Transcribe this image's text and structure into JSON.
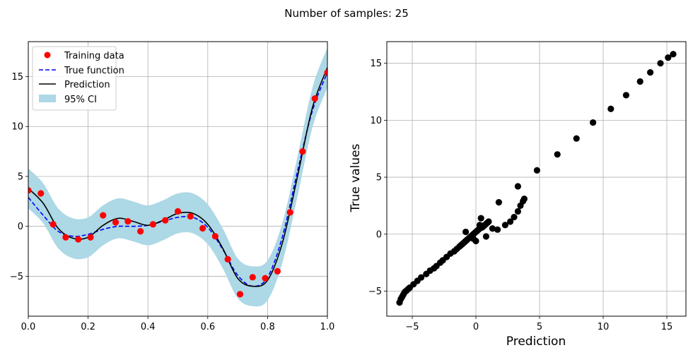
{
  "figure": {
    "suptitle": "Number of samples: 25"
  },
  "colors": {
    "training": "#ff0000",
    "true_function": "#0000ff",
    "prediction": "#000000",
    "ci": "#add8e6",
    "grid": "#b0b0b0",
    "scatter": "#000000"
  },
  "chart_data": [
    {
      "type": "line",
      "name": "gp-fit",
      "title": "",
      "xlabel": "",
      "ylabel": "",
      "xlim": [
        0,
        1
      ],
      "ylim": [
        -9,
        18.5
      ],
      "xticks": [
        0,
        0.2,
        0.4,
        0.6,
        0.8,
        1.0
      ],
      "xtick_labels": [
        "0.0",
        "0.2",
        "0.4",
        "0.6",
        "0.8",
        "1.0"
      ],
      "yticks": [
        -5,
        0,
        5,
        10,
        15
      ],
      "ytick_labels": [
        "−5",
        "0",
        "5",
        "10",
        "15"
      ],
      "grid": true,
      "legend": {
        "position": "upper-left",
        "entries": [
          "Training data",
          "True function",
          "Prediction",
          "95% CI"
        ]
      },
      "training_data": {
        "x": [
          0.0,
          0.042,
          0.083,
          0.125,
          0.167,
          0.208,
          0.25,
          0.292,
          0.333,
          0.375,
          0.417,
          0.458,
          0.5,
          0.542,
          0.583,
          0.625,
          0.667,
          0.708,
          0.75,
          0.792,
          0.833,
          0.875,
          0.917,
          0.958,
          1.0
        ],
        "y": [
          3.6,
          3.3,
          0.2,
          -1.1,
          -1.3,
          -1.1,
          1.1,
          0.4,
          0.5,
          -0.5,
          0.2,
          0.6,
          1.5,
          1.0,
          -0.2,
          -1.0,
          -3.3,
          -6.8,
          -5.1,
          -5.2,
          -4.5,
          1.4,
          7.5,
          12.8,
          15.4
        ]
      },
      "true_function": {
        "x": [
          0.0,
          0.05,
          0.1,
          0.15,
          0.2,
          0.25,
          0.3,
          0.35,
          0.4,
          0.45,
          0.5,
          0.55,
          0.6,
          0.65,
          0.7,
          0.75,
          0.8,
          0.85,
          0.9,
          0.95,
          1.0
        ],
        "y": [
          2.9,
          1.1,
          -0.5,
          -1.0,
          -0.8,
          -0.3,
          0.0,
          0.0,
          0.1,
          0.5,
          0.9,
          0.9,
          -0.1,
          -2.3,
          -4.9,
          -6.0,
          -5.1,
          -1.0,
          5.5,
          11.6,
          15.4
        ]
      },
      "prediction": {
        "x": [
          0.0,
          0.05,
          0.1,
          0.15,
          0.2,
          0.25,
          0.3,
          0.35,
          0.4,
          0.45,
          0.5,
          0.55,
          0.6,
          0.65,
          0.7,
          0.75,
          0.8,
          0.85,
          0.9,
          0.95,
          1.0
        ],
        "y": [
          3.8,
          2.3,
          -0.2,
          -1.2,
          -1.1,
          0.1,
          0.8,
          0.5,
          0.1,
          0.6,
          1.3,
          1.3,
          0.2,
          -2.2,
          -5.2,
          -6.0,
          -5.4,
          -1.6,
          5.0,
          11.9,
          15.9
        ]
      },
      "ci_half_width": 2
    },
    {
      "type": "scatter",
      "name": "parity",
      "title": "",
      "xlabel": "Prediction",
      "ylabel": "True values",
      "xlim": [
        -7,
        16.5
      ],
      "ylim": [
        -7.2,
        16.9
      ],
      "xticks": [
        -5,
        0,
        5,
        10,
        15
      ],
      "xtick_labels": [
        "−5",
        "0",
        "5",
        "10",
        "15"
      ],
      "yticks": [
        -5,
        0,
        5,
        10,
        15
      ],
      "ytick_labels": [
        "−5",
        "0",
        "5",
        "10",
        "15"
      ],
      "grid": true,
      "points": {
        "x": [
          -6.0,
          -5.9,
          -5.8,
          -5.7,
          -5.6,
          -5.5,
          -5.4,
          -5.3,
          -5.2,
          -4.9,
          -4.6,
          -4.3,
          -3.9,
          -3.6,
          -3.3,
          -3.1,
          -2.8,
          -2.6,
          -2.3,
          -2.0,
          -1.7,
          -1.5,
          -1.3,
          -1.2,
          -1.1,
          -1.0,
          -0.9,
          -0.8,
          -0.7,
          -0.6,
          -0.5,
          -0.4,
          -0.3,
          -0.2,
          -0.1,
          0.0,
          0.1,
          0.2,
          0.3,
          0.4,
          0.5,
          0.6,
          0.7,
          0.8,
          0.9,
          1.0,
          1.3,
          1.7,
          2.3,
          2.7,
          3.0,
          3.3,
          3.5,
          3.7,
          3.8,
          3.3,
          1.8,
          4.8,
          6.4,
          7.9,
          9.2,
          10.6,
          11.8,
          12.9,
          13.7,
          14.5,
          15.1,
          15.5,
          -0.8,
          0.4,
          0.0,
          0.8,
          -0.2,
          0.3
        ],
        "y": [
          -6.0,
          -5.7,
          -5.5,
          -5.3,
          -5.1,
          -5.0,
          -4.9,
          -4.8,
          -4.7,
          -4.4,
          -4.1,
          -3.8,
          -3.5,
          -3.2,
          -3.0,
          -2.8,
          -2.5,
          -2.3,
          -2.0,
          -1.7,
          -1.5,
          -1.3,
          -1.1,
          -1.0,
          -0.9,
          -0.8,
          -0.7,
          -0.6,
          -0.5,
          -0.4,
          -0.3,
          -0.2,
          -0.1,
          0.0,
          0.1,
          0.2,
          0.3,
          0.4,
          0.5,
          0.6,
          0.6,
          0.7,
          0.8,
          0.9,
          1.0,
          1.1,
          0.5,
          0.4,
          0.8,
          1.1,
          1.5,
          2.0,
          2.5,
          2.9,
          3.1,
          4.2,
          2.8,
          5.6,
          7.0,
          8.4,
          9.8,
          11.0,
          12.2,
          13.4,
          14.2,
          15.0,
          15.5,
          15.8,
          0.2,
          1.4,
          -0.6,
          -0.2,
          -0.4,
          0.8
        ]
      }
    }
  ]
}
